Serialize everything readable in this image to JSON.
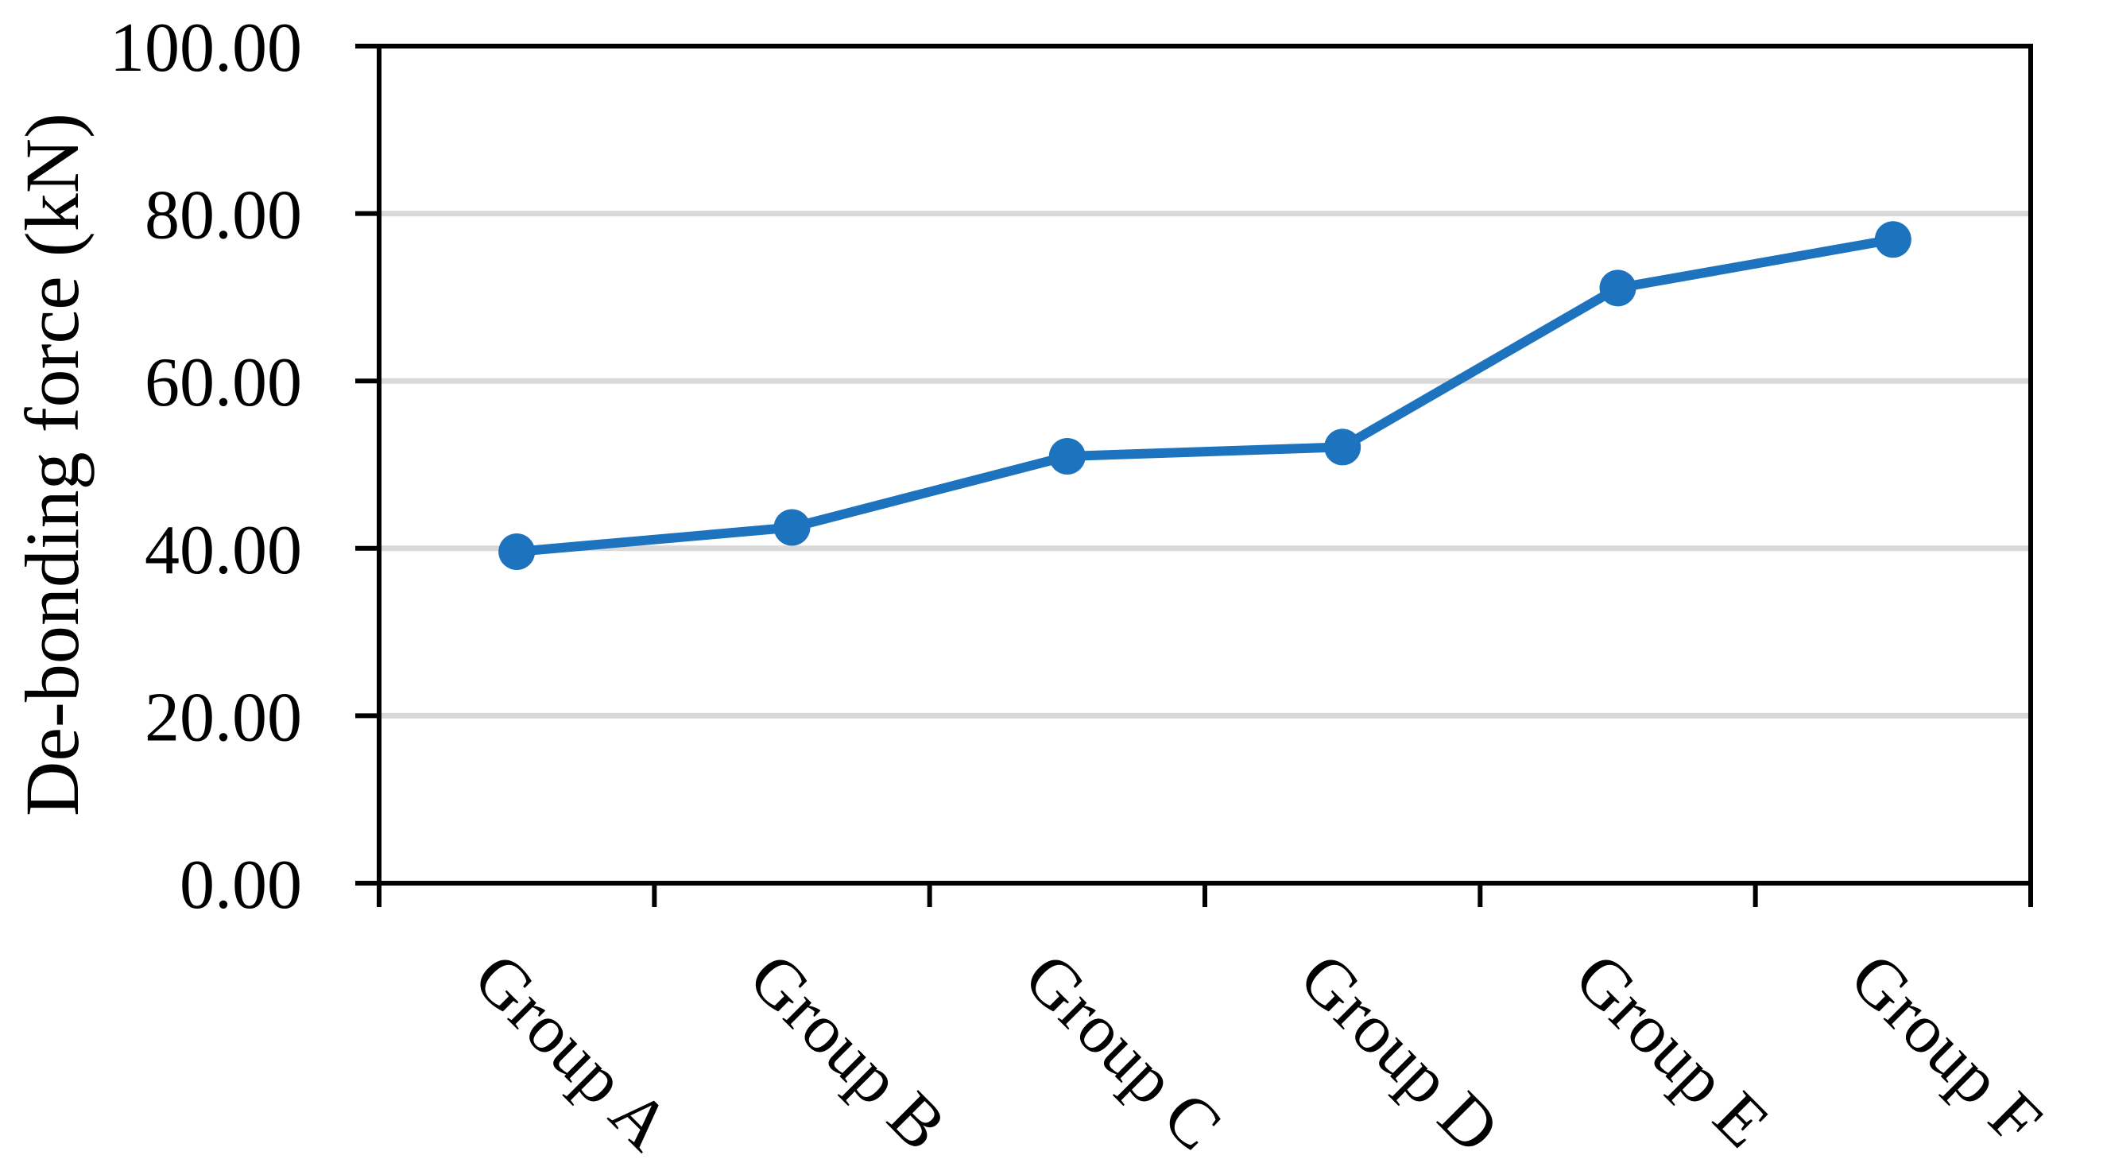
{
  "chart_data": {
    "type": "line",
    "title": "",
    "xlabel": "",
    "ylabel": "De-bonding force (kN)",
    "categories": [
      "Group A",
      "Group B",
      "Group C",
      "Group D",
      "Group E",
      "Group F"
    ],
    "series": [
      {
        "name": "De-bonding force (kN)",
        "values": [
          39.6,
          42.5,
          51.0,
          52.1,
          71.1,
          76.9
        ]
      }
    ],
    "ylim": [
      0,
      100
    ],
    "ytick_step": 20,
    "ytick_labels": [
      "0.00",
      "20.00",
      "40.00",
      "60.00",
      "80.00",
      "100.00"
    ],
    "xtick_label_rotation_deg": 45,
    "grid": true,
    "legend": false,
    "plot_border": true,
    "marker": "circle",
    "colors": {
      "line": "#1E73BE",
      "marker": "#1E73BE",
      "gridline": "#D9D9D9",
      "axis": "#000000",
      "text": "#000000",
      "background": "#FFFFFF"
    }
  }
}
